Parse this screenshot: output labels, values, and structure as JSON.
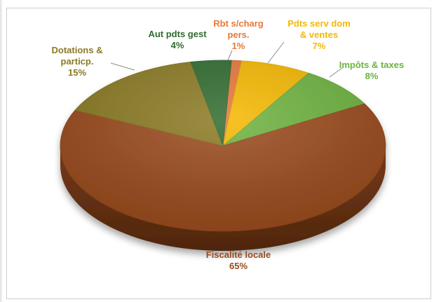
{
  "chart_data": {
    "type": "pie",
    "style": "3d",
    "slices": [
      {
        "label": [
          "Fiscalité locale"
        ],
        "pct_text": "65%",
        "value": 65,
        "color": "#9a4a1c"
      },
      {
        "label": [
          "Dotations &",
          "particp."
        ],
        "pct_text": "15%",
        "value": 15,
        "color": "#8a7a22"
      },
      {
        "label": [
          "Aut pdts gest"
        ],
        "pct_text": "4%",
        "value": 4,
        "color": "#2f6b2f"
      },
      {
        "label": [
          "Rbt s/charg",
          "pers."
        ],
        "pct_text": "1%",
        "value": 1,
        "color": "#e8773a"
      },
      {
        "label": [
          "Pdts serv dom",
          "& ventes"
        ],
        "pct_text": "7%",
        "value": 7,
        "color": "#f5b800"
      },
      {
        "label": [
          "Impôts & taxes"
        ],
        "pct_text": "8%",
        "value": 8,
        "color": "#6db33f"
      }
    ],
    "label_colors": [
      "#9a4a1c",
      "#8a7a22",
      "#2f6b2f",
      "#e8773a",
      "#f5b800",
      "#6db33f"
    ],
    "legend": "none"
  }
}
